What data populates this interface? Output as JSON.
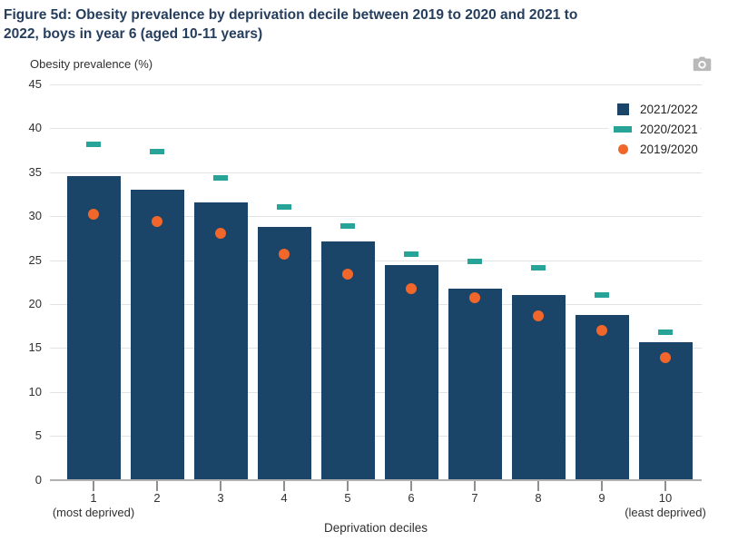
{
  "chart_data": {
    "type": "bar",
    "title": "Figure 5d: Obesity prevalence by deprivation decile between 2019 to 2020 and 2021 to\n2022, boys in year 6 (aged 10-11 years)",
    "ylabel": "Obesity prevalence (%)",
    "xlabel": "Deprivation deciles",
    "categories": [
      "1",
      "2",
      "3",
      "4",
      "5",
      "6",
      "7",
      "8",
      "9",
      "10"
    ],
    "x_sublabels": {
      "first": "(most deprived)",
      "last": "(least deprived)"
    },
    "ylim": [
      0,
      45
    ],
    "y_ticks": [
      0,
      5,
      10,
      15,
      20,
      25,
      30,
      35,
      40,
      45
    ],
    "grid": true,
    "legend_position": "top-right",
    "series": [
      {
        "name": "2021/2022",
        "style": "bar",
        "color": "#1a4569",
        "values": [
          34.6,
          33.0,
          31.6,
          28.8,
          27.1,
          24.4,
          21.8,
          21.0,
          18.8,
          15.7
        ]
      },
      {
        "name": "2020/2021",
        "style": "dash",
        "color": "#27a398",
        "values": [
          38.2,
          37.4,
          34.4,
          31.1,
          28.9,
          25.7,
          24.9,
          24.1,
          21.0,
          16.8
        ]
      },
      {
        "name": "2019/2020",
        "style": "dot",
        "color": "#f1662a",
        "values": [
          30.2,
          29.4,
          28.1,
          25.7,
          23.4,
          21.7,
          20.7,
          18.6,
          17.0,
          13.9
        ]
      }
    ],
    "colors": {
      "gridline": "#e3e3e3",
      "axis_line": "#b0b0b0",
      "tick": "#8f8f8f",
      "text": "#303030",
      "title": "#263e5d",
      "camera_icon": "#b9b9b9"
    }
  },
  "toolbar": {
    "camera_icon": "camera"
  }
}
